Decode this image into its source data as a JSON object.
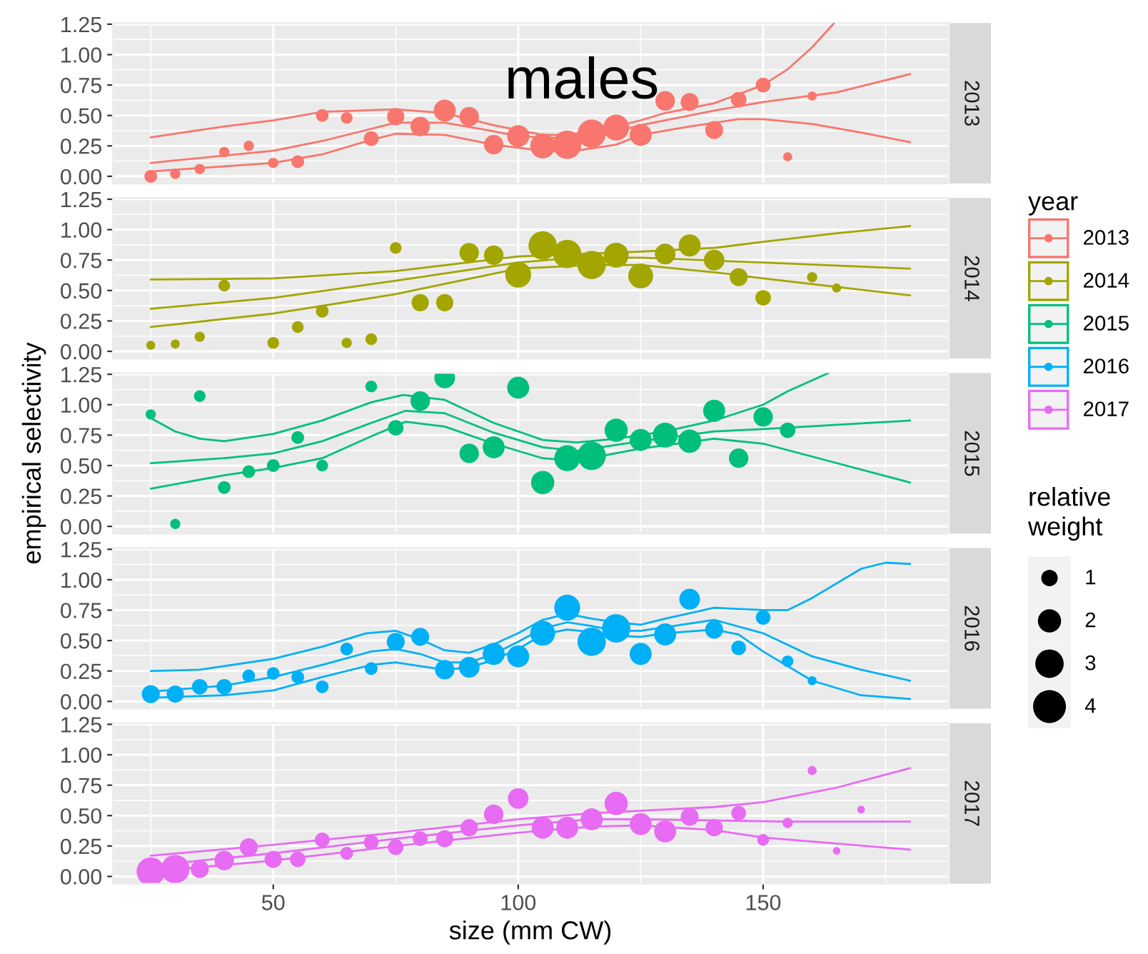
{
  "chart_data": [
    {
      "type": "bubble",
      "annotations": [
        "males"
      ],
      "legend": "right",
      "legend_title": "year",
      "xlim": [
        17.25,
        187.75
      ],
      "xticks": [
        50,
        100,
        150
      ],
      "ylim": [
        -0.06,
        1.26
      ],
      "yticks": [
        {
          "value": 0,
          "label": "0.00"
        },
        {
          "value": 0.25,
          "label": "0.25"
        },
        {
          "value": 0.5,
          "label": "0.50"
        },
        {
          "value": 0.75,
          "label": "0.75"
        },
        {
          "value": 1,
          "label": "1.00"
        },
        {
          "value": 1.25,
          "label": "1.25"
        }
      ],
      "grid": true,
      "tick_labels": "y",
      "series": [
        {
          "name": "2013",
          "color": "#f8766d",
          "x": [
            25,
            30,
            35,
            40,
            45,
            50,
            55,
            60,
            65,
            70,
            75,
            80,
            85,
            90,
            95,
            100,
            105,
            110,
            115,
            120,
            125,
            130,
            135,
            140,
            145,
            150,
            155,
            160
          ],
          "values": [
            0.0,
            0.02,
            0.06,
            0.2,
            0.25,
            0.11,
            0.12,
            0.5,
            0.48,
            0.31,
            0.49,
            0.41,
            0.54,
            0.49,
            0.26,
            0.33,
            0.25,
            0.26,
            0.35,
            0.4,
            0.34,
            0.62,
            0.61,
            0.38,
            0.63,
            0.75,
            0.16,
            0.66
          ],
          "sizes": [
            0.2,
            0.13,
            0.13,
            0.13,
            0.13,
            0.13,
            0.2,
            0.2,
            0.17,
            0.27,
            0.37,
            0.47,
            0.6,
            0.47,
            0.47,
            0.6,
            0.77,
            1,
            1,
            0.83,
            0.6,
            0.47,
            0.4,
            0.4,
            0.3,
            0.27,
            0.1,
            0.1
          ]
        },
        {
          "type": "line",
          "color": "#f8766d",
          "x": [
            25,
            40,
            50,
            60,
            75,
            85,
            95,
            100,
            105,
            110,
            115,
            120,
            125,
            130,
            140,
            150,
            155,
            160,
            164.5
          ],
          "values": [
            0.32,
            0.41,
            0.46,
            0.53,
            0.55,
            0.52,
            0.42,
            0.38,
            0.34,
            0.34,
            0.37,
            0.41,
            0.46,
            0.52,
            0.6,
            0.75,
            0.88,
            1.06,
            1.26
          ]
        },
        {
          "type": "line",
          "color": "#f8766d",
          "x": [
            25,
            50,
            60,
            75,
            85,
            95,
            100,
            110,
            120,
            125,
            140,
            150,
            165,
            180
          ],
          "values": [
            0.11,
            0.21,
            0.29,
            0.44,
            0.44,
            0.37,
            0.33,
            0.31,
            0.37,
            0.42,
            0.54,
            0.61,
            0.69,
            0.84
          ]
        },
        {
          "type": "line",
          "color": "#f8766d",
          "x": [
            25,
            50,
            60,
            70,
            75,
            85,
            95,
            105,
            110,
            120,
            125,
            135,
            145,
            150,
            160,
            170,
            180
          ],
          "values": [
            0.04,
            0.11,
            0.18,
            0.3,
            0.35,
            0.34,
            0.26,
            0.21,
            0.2,
            0.26,
            0.34,
            0.41,
            0.47,
            0.47,
            0.43,
            0.36,
            0.28
          ]
        }
      ]
    },
    {
      "type": "bubble",
      "legend": "right",
      "xlim": [
        17.25,
        187.75
      ],
      "xticks": [
        50,
        100,
        150
      ],
      "ylim": [
        -0.06,
        1.26
      ],
      "yticks": [
        {
          "value": 0,
          "label": "0.00"
        },
        {
          "value": 0.25,
          "label": "0.25"
        },
        {
          "value": 0.5,
          "label": "0.50"
        },
        {
          "value": 0.75,
          "label": "0.75"
        },
        {
          "value": 1,
          "label": "1.00"
        },
        {
          "value": 1.25,
          "label": "1.25"
        }
      ],
      "grid": true,
      "tick_labels": "y",
      "series": [
        {
          "name": "2014",
          "color": "#a3a500",
          "x": [
            25,
            30,
            35,
            40,
            50,
            55,
            60,
            65,
            70,
            75,
            80,
            85,
            90,
            95,
            100,
            105,
            110,
            115,
            120,
            125,
            130,
            135,
            140,
            145,
            150,
            160,
            165
          ],
          "values": [
            0.05,
            0.06,
            0.12,
            0.54,
            0.07,
            0.2,
            0.33,
            0.07,
            0.1,
            0.85,
            0.4,
            0.4,
            0.81,
            0.79,
            0.63,
            0.87,
            0.8,
            0.71,
            0.79,
            0.62,
            0.8,
            0.87,
            0.75,
            0.61,
            0.44,
            0.61,
            0.52
          ],
          "sizes": [
            0.1,
            0.1,
            0.13,
            0.17,
            0.17,
            0.17,
            0.2,
            0.13,
            0.17,
            0.17,
            0.37,
            0.37,
            0.47,
            0.47,
            0.83,
            1,
            1,
            1,
            0.77,
            0.77,
            0.53,
            0.6,
            0.53,
            0.4,
            0.3,
            0.13,
            0.1
          ]
        },
        {
          "type": "line",
          "color": "#a3a500",
          "x": [
            25,
            50,
            75,
            100,
            125,
            140,
            150,
            165,
            180
          ],
          "values": [
            0.59,
            0.6,
            0.66,
            0.78,
            0.82,
            0.85,
            0.9,
            0.97,
            1.03
          ]
        },
        {
          "type": "line",
          "color": "#a3a500",
          "x": [
            25,
            50,
            75,
            100,
            112,
            125,
            150,
            180
          ],
          "values": [
            0.35,
            0.44,
            0.58,
            0.73,
            0.77,
            0.77,
            0.73,
            0.68
          ]
        },
        {
          "type": "line",
          "color": "#a3a500",
          "x": [
            25,
            50,
            75,
            100,
            115,
            125,
            140,
            150,
            180
          ],
          "values": [
            0.2,
            0.31,
            0.47,
            0.68,
            0.71,
            0.71,
            0.65,
            0.6,
            0.46
          ]
        }
      ]
    },
    {
      "type": "bubble",
      "legend": "right",
      "ylabel": "empirical selectivity",
      "xlim": [
        17.25,
        187.75
      ],
      "xticks": [
        50,
        100,
        150
      ],
      "ylim": [
        -0.06,
        1.26
      ],
      "yticks": [
        {
          "value": 0,
          "label": "0.00"
        },
        {
          "value": 0.25,
          "label": "0.25"
        },
        {
          "value": 0.5,
          "label": "0.50"
        },
        {
          "value": 0.75,
          "label": "0.75"
        },
        {
          "value": 1,
          "label": "1.00"
        },
        {
          "value": 1.25,
          "label": "1.25"
        }
      ],
      "grid": true,
      "tick_labels": "y",
      "series": [
        {
          "name": "2015",
          "color": "#00bf7d",
          "x": [
            25,
            30,
            35,
            40,
            45,
            50,
            55,
            60,
            70,
            75,
            80,
            85,
            90,
            95,
            100,
            105,
            110,
            115,
            120,
            125,
            130,
            135,
            140,
            145,
            150,
            155
          ],
          "values": [
            0.92,
            0.02,
            1.07,
            0.32,
            0.45,
            0.5,
            0.73,
            0.5,
            1.15,
            0.81,
            1.03,
            1.22,
            0.6,
            0.65,
            1.14,
            0.36,
            0.56,
            0.58,
            0.79,
            0.71,
            0.75,
            0.7,
            0.95,
            0.56,
            0.9,
            0.79
          ],
          "sizes": [
            0.13,
            0.13,
            0.17,
            0.2,
            0.2,
            0.2,
            0.2,
            0.17,
            0.17,
            0.3,
            0.47,
            0.53,
            0.47,
            0.6,
            0.6,
            0.67,
            0.83,
            1,
            0.67,
            0.6,
            0.77,
            0.67,
            0.6,
            0.47,
            0.47,
            0.3
          ]
        },
        {
          "type": "line",
          "color": "#00bf7d",
          "x": [
            25,
            30,
            35,
            40,
            50,
            60,
            70,
            76.5,
            85,
            95,
            105,
            112,
            120,
            130,
            140,
            150,
            155,
            163.3
          ],
          "values": [
            0.89,
            0.78,
            0.72,
            0.7,
            0.76,
            0.87,
            1.02,
            1.08,
            1.04,
            0.85,
            0.71,
            0.69,
            0.72,
            0.78,
            0.87,
            1.0,
            1.11,
            1.26
          ]
        },
        {
          "type": "line",
          "color": "#00bf7d",
          "x": [
            25,
            40,
            50,
            60,
            70,
            77,
            85,
            95,
            105,
            112,
            125,
            140,
            150,
            180
          ],
          "values": [
            0.52,
            0.56,
            0.6,
            0.7,
            0.85,
            0.95,
            0.93,
            0.77,
            0.65,
            0.62,
            0.7,
            0.78,
            0.8,
            0.87
          ]
        },
        {
          "type": "line",
          "color": "#00bf7d",
          "x": [
            25,
            40,
            50,
            60,
            70,
            77,
            85,
            95,
            105,
            112,
            125,
            140,
            150,
            165,
            180
          ],
          "values": [
            0.31,
            0.42,
            0.48,
            0.56,
            0.74,
            0.86,
            0.82,
            0.68,
            0.56,
            0.54,
            0.64,
            0.72,
            0.68,
            0.52,
            0.36
          ]
        }
      ]
    },
    {
      "type": "bubble",
      "legend": "right",
      "legend_title": "relative weight",
      "size_legend": [
        1,
        2,
        3,
        4
      ],
      "xlim": [
        17.25,
        187.75
      ],
      "xticks": [
        50,
        100,
        150
      ],
      "ylim": [
        -0.06,
        1.26
      ],
      "yticks": [
        {
          "value": 0,
          "label": "0.00"
        },
        {
          "value": 0.25,
          "label": "0.25"
        },
        {
          "value": 0.5,
          "label": "0.50"
        },
        {
          "value": 0.75,
          "label": "0.75"
        },
        {
          "value": 1,
          "label": "1.00"
        },
        {
          "value": 1.25,
          "label": "1.25"
        }
      ],
      "grid": true,
      "tick_labels": "y",
      "series": [
        {
          "name": "2016",
          "color": "#00b0f6",
          "x": [
            25,
            30,
            35,
            40,
            45,
            50,
            55,
            60,
            65,
            70,
            75,
            80,
            85,
            90,
            95,
            100,
            105,
            110,
            115,
            120,
            125,
            130,
            135,
            140,
            145,
            150,
            155,
            160
          ],
          "values": [
            0.06,
            0.06,
            0.12,
            0.12,
            0.21,
            0.23,
            0.2,
            0.12,
            0.43,
            0.27,
            0.49,
            0.53,
            0.26,
            0.28,
            0.39,
            0.37,
            0.56,
            0.77,
            0.49,
            0.6,
            0.39,
            0.55,
            0.84,
            0.59,
            0.44,
            0.69,
            0.33,
            0.17
          ],
          "sizes": [
            1.2,
            1.1,
            0.9,
            0.9,
            0.6,
            0.6,
            0.6,
            0.6,
            0.6,
            0.6,
            1.2,
            1.2,
            1.4,
            1.6,
            1.8,
            1.8,
            2.3,
            2.5,
            3.0,
            3.0,
            1.8,
            1.8,
            1.6,
            1.2,
            0.8,
            0.8,
            0.5,
            0.3
          ]
        },
        {
          "type": "line",
          "color": "#00b0f6",
          "x": [
            25,
            35,
            50,
            60,
            69,
            75,
            80,
            85,
            90,
            95,
            100,
            105,
            110,
            115,
            120,
            125,
            130,
            140,
            150,
            155,
            160,
            170,
            175,
            180
          ],
          "values": [
            0.25,
            0.26,
            0.35,
            0.45,
            0.56,
            0.58,
            0.51,
            0.42,
            0.4,
            0.47,
            0.56,
            0.67,
            0.72,
            0.68,
            0.65,
            0.63,
            0.68,
            0.77,
            0.75,
            0.75,
            0.85,
            1.09,
            1.14,
            1.13
          ]
        },
        {
          "type": "line",
          "color": "#00b0f6",
          "x": [
            25,
            40,
            50,
            60,
            70,
            75,
            80,
            85,
            90,
            95,
            100,
            105,
            110,
            115,
            120,
            125,
            130,
            140,
            150,
            160,
            170,
            180
          ],
          "values": [
            0.08,
            0.13,
            0.2,
            0.3,
            0.41,
            0.43,
            0.39,
            0.32,
            0.32,
            0.39,
            0.49,
            0.6,
            0.65,
            0.62,
            0.58,
            0.58,
            0.61,
            0.67,
            0.56,
            0.37,
            0.26,
            0.17
          ]
        },
        {
          "type": "line",
          "color": "#00b0f6",
          "x": [
            25,
            40,
            50,
            60,
            70,
            75,
            80,
            85,
            90,
            95,
            100,
            105,
            110,
            115,
            120,
            125,
            130,
            140,
            145,
            150,
            160,
            170,
            180
          ],
          "values": [
            0.03,
            0.05,
            0.09,
            0.2,
            0.3,
            0.32,
            0.29,
            0.26,
            0.28,
            0.34,
            0.43,
            0.55,
            0.59,
            0.57,
            0.54,
            0.53,
            0.56,
            0.59,
            0.55,
            0.41,
            0.17,
            0.05,
            0.02
          ]
        }
      ]
    },
    {
      "type": "bubble",
      "legend": "right",
      "xlabel": "size (mm CW)",
      "xlim": [
        17.25,
        187.75
      ],
      "xticks": [
        50,
        100,
        150
      ],
      "ylim": [
        -0.06,
        1.26
      ],
      "yticks": [
        {
          "value": 0,
          "label": "0.00"
        },
        {
          "value": 0.25,
          "label": "0.25"
        },
        {
          "value": 0.5,
          "label": "0.50"
        },
        {
          "value": 0.75,
          "label": "0.75"
        },
        {
          "value": 1,
          "label": "1.00"
        },
        {
          "value": 1.25,
          "label": "1.25"
        }
      ],
      "grid": true,
      "series": [
        {
          "name": "2017",
          "color": "#e76bf3",
          "x": [
            25,
            30,
            35,
            40,
            45,
            50,
            55,
            60,
            65,
            70,
            75,
            80,
            85,
            90,
            95,
            100,
            105,
            110,
            115,
            120,
            125,
            130,
            135,
            140,
            145,
            150,
            155,
            160,
            165,
            170
          ],
          "values": [
            0.04,
            0.06,
            0.06,
            0.13,
            0.24,
            0.14,
            0.14,
            0.3,
            0.19,
            0.28,
            0.24,
            0.31,
            0.31,
            0.4,
            0.51,
            0.64,
            0.4,
            0.4,
            0.47,
            0.6,
            0.43,
            0.37,
            0.49,
            0.4,
            0.52,
            0.3,
            0.44,
            0.87,
            0.21,
            0.55
          ],
          "sizes": [
            1,
            1,
            0.4,
            0.47,
            0.4,
            0.37,
            0.3,
            0.27,
            0.2,
            0.27,
            0.3,
            0.27,
            0.37,
            0.37,
            0.47,
            0.53,
            0.6,
            0.6,
            0.6,
            0.67,
            0.6,
            0.6,
            0.4,
            0.37,
            0.27,
            0.17,
            0.13,
            0.1,
            0.07,
            0.07
          ]
        },
        {
          "type": "line",
          "color": "#e76bf3",
          "x": [
            25,
            50,
            75,
            100,
            115,
            125,
            140,
            150,
            165,
            180
          ],
          "values": [
            0.17,
            0.26,
            0.36,
            0.47,
            0.52,
            0.54,
            0.57,
            0.61,
            0.73,
            0.89
          ]
        },
        {
          "type": "line",
          "color": "#e76bf3",
          "x": [
            25,
            50,
            75,
            100,
            115,
            125,
            140,
            155,
            180
          ],
          "values": [
            0.09,
            0.19,
            0.31,
            0.42,
            0.47,
            0.47,
            0.46,
            0.45,
            0.45
          ]
        },
        {
          "type": "line",
          "color": "#e76bf3",
          "x": [
            25,
            50,
            75,
            100,
            115,
            125,
            140,
            150,
            165,
            180
          ],
          "values": [
            0.04,
            0.13,
            0.25,
            0.36,
            0.41,
            0.42,
            0.38,
            0.32,
            0.27,
            0.22
          ]
        }
      ]
    }
  ]
}
